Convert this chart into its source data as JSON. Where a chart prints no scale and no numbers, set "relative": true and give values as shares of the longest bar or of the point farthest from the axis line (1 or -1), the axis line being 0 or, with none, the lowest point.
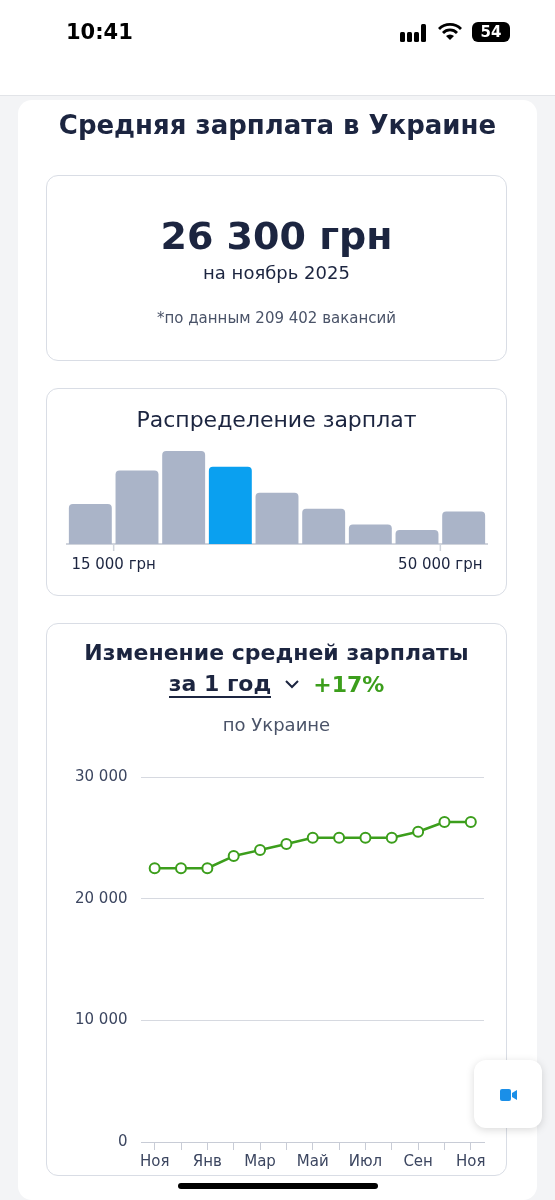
{
  "chart_data": [
    {
      "type": "other",
      "title": "Средняя зарплата в Украине",
      "annotations": [
        "10:41",
        "54",
        "26 300 грн",
        "на ноябрь 2025",
        "*по данным 209 402 вакансий"
      ]
    },
    {
      "type": "bar",
      "title": "Распределение зарплат",
      "relative": true,
      "categories": [
        null,
        null,
        null,
        null,
        null,
        null,
        null,
        null,
        null
      ],
      "values": [
        0.43,
        0.79,
        1,
        0.83,
        0.55,
        0.38,
        0.21,
        0.15,
        0.35
      ],
      "colors": [
        "#aab4c8",
        "#aab4c8",
        "#aab4c8",
        "#0aa0f0",
        "#aab4c8",
        "#aab4c8",
        "#aab4c8",
        "#aab4c8",
        "#aab4c8"
      ],
      "annotations": [
        "15 000 грн",
        "50 000 грн"
      ]
    },
    {
      "type": "line",
      "title": "Изменение средней зарплаты",
      "subtitle": "по Украине",
      "annotations": [
        "за 1 год",
        "+17%"
      ],
      "categories": [
        "Ноя",
        null,
        "Янв",
        null,
        "Мар",
        null,
        "Май",
        null,
        "Июл",
        null,
        "Сен",
        null,
        "Ноя"
      ],
      "series": [
        {
          "color": "#3c9e1c",
          "values": [
            22500,
            22500,
            22500,
            23500,
            24000,
            24500,
            25000,
            25000,
            25000,
            25000,
            25500,
            26300,
            26300
          ]
        }
      ],
      "ylim": [
        0,
        30000
      ],
      "yticks": [
        {
          "value": 0,
          "label": "0"
        },
        {
          "value": 10000,
          "label": "10 000"
        },
        {
          "value": 20000,
          "label": "20 000"
        },
        {
          "value": 30000,
          "label": "30 000"
        }
      ],
      "grid": "y",
      "marker": "circle"
    }
  ]
}
